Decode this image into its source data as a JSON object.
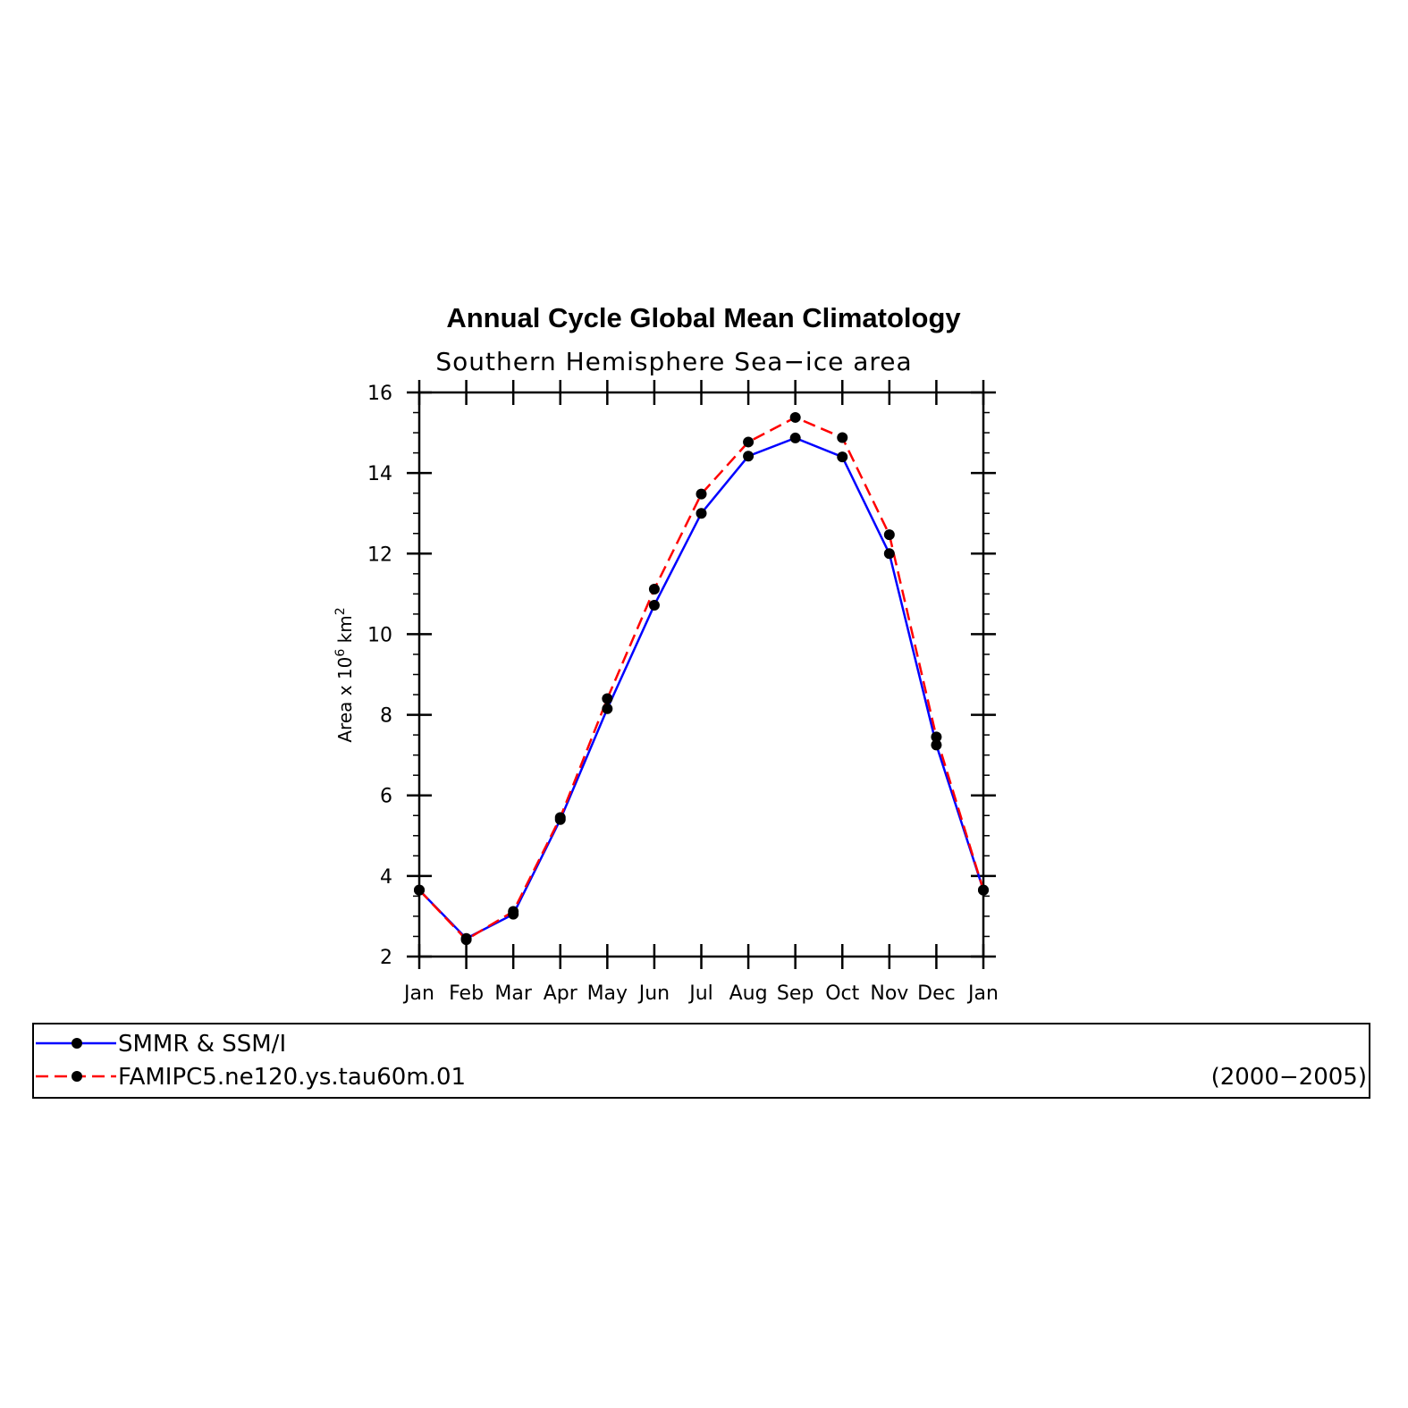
{
  "chart_data": {
    "type": "line",
    "title": "Annual Cycle Global Mean Climatology",
    "subtitle": "Southern Hemisphere Sea−ice area",
    "ylabel": {
      "base": "Area x 10",
      "exp1": "6",
      "mid": " km",
      "exp2": "2"
    },
    "xlabel": "",
    "categories": [
      "Jan",
      "Feb",
      "Mar",
      "Apr",
      "May",
      "Jun",
      "Jul",
      "Aug",
      "Sep",
      "Oct",
      "Nov",
      "Dec",
      "Jan"
    ],
    "ylim": [
      2,
      16
    ],
    "yticks": [
      2,
      4,
      6,
      8,
      10,
      12,
      14,
      16
    ],
    "series": [
      {
        "name": "SMMR & SSM/I",
        "color": "#0000ff",
        "dash": "solid",
        "values": [
          3.65,
          2.45,
          3.05,
          5.4,
          8.15,
          10.72,
          13.0,
          14.42,
          14.87,
          14.4,
          12.0,
          7.25,
          3.65
        ]
      },
      {
        "name": "FAMIPC5.ne120.ys.tau60m.01",
        "color": "#ff0000",
        "dash": "dashed",
        "values": [
          3.65,
          2.42,
          3.12,
          5.45,
          8.4,
          11.12,
          13.48,
          14.77,
          15.38,
          14.88,
          12.47,
          7.45,
          3.65
        ]
      }
    ],
    "marker_color": "#000000",
    "legend_note": "(2000−2005)",
    "legend_position": "bottom"
  }
}
